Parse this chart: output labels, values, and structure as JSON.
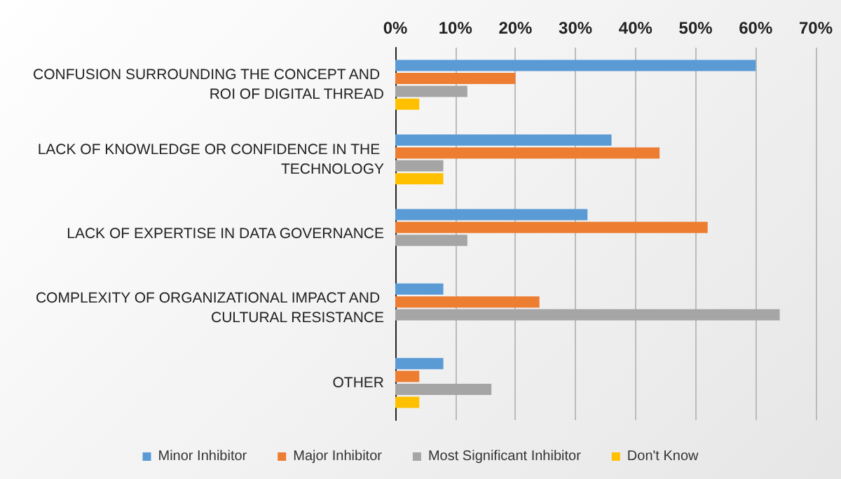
{
  "chart_data": {
    "type": "bar",
    "orientation": "horizontal",
    "categories": [
      "CONFUSION SURROUNDING THE CONCEPT AND ROI OF DIGITAL THREAD",
      "LACK OF KNOWLEDGE OR CONFIDENCE IN THE TECHNOLOGY",
      "LACK OF EXPERTISE IN DATA GOVERNANCE",
      "COMPLEXITY OF ORGANIZATIONAL IMPACT AND CULTURAL RESISTANCE",
      "OTHER"
    ],
    "series": [
      {
        "name": "Minor Inhibitor",
        "color": "#5b9bd5",
        "values": [
          60,
          36,
          32,
          8,
          8
        ]
      },
      {
        "name": "Major Inhibitor",
        "color": "#ed7d31",
        "values": [
          20,
          44,
          52,
          24,
          4
        ]
      },
      {
        "name": "Most Significant Inhibitor",
        "color": "#a5a5a5",
        "values": [
          12,
          8,
          12,
          64,
          16
        ]
      },
      {
        "name": "Don't Know",
        "color": "#ffc000",
        "values": [
          4,
          8,
          null,
          null,
          4
        ]
      }
    ],
    "xlim": [
      0,
      70
    ],
    "xticks": [
      {
        "value": 0,
        "label": "0%"
      },
      {
        "value": 10,
        "label": "10%"
      },
      {
        "value": 20,
        "label": "20%"
      },
      {
        "value": 30,
        "label": "30%"
      },
      {
        "value": 40,
        "label": "40%"
      },
      {
        "value": 50,
        "label": "50%"
      },
      {
        "value": 60,
        "label": "60%"
      },
      {
        "value": 70,
        "label": "70%"
      }
    ],
    "grid": "x",
    "legend": "bottom"
  }
}
